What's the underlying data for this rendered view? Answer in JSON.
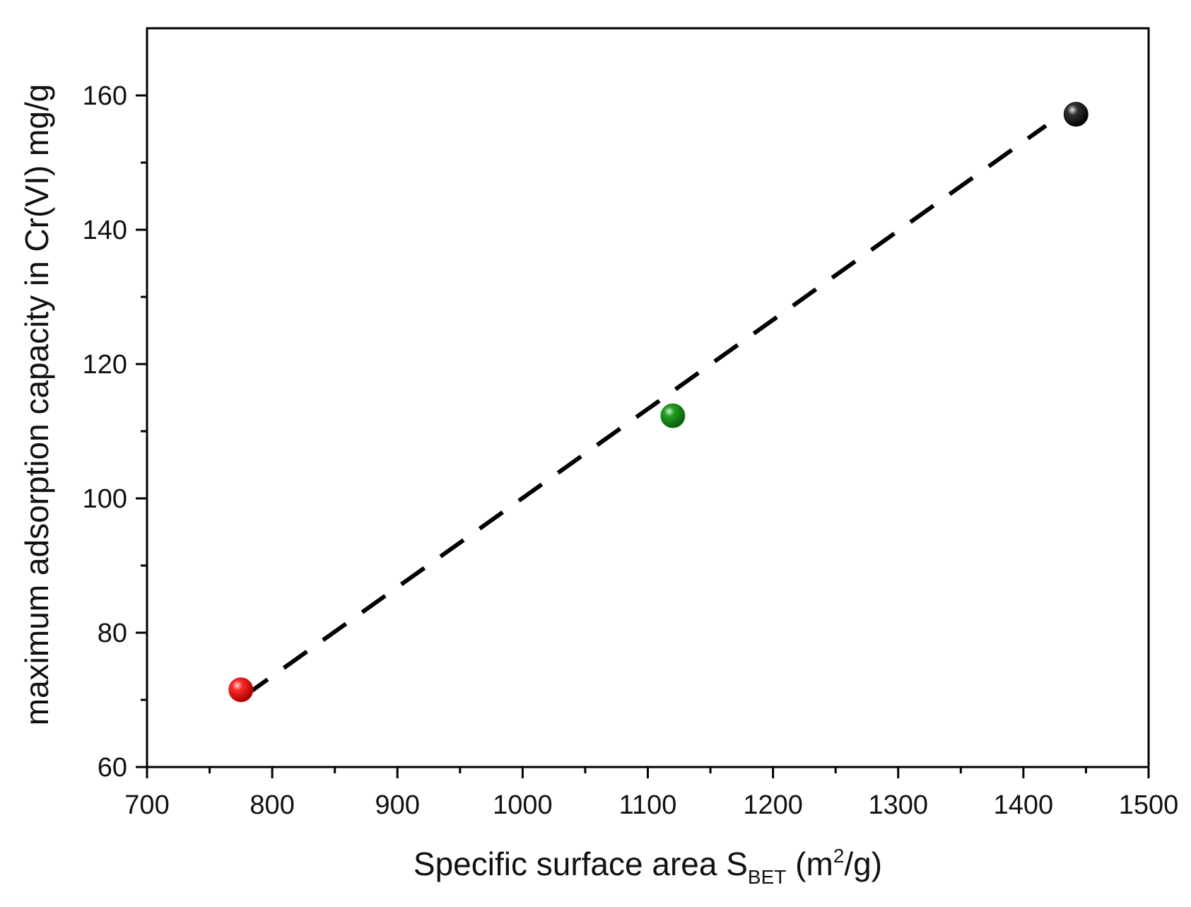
{
  "chart_data": {
    "type": "scatter",
    "title": "",
    "xlabel_parts": {
      "main": "Specific surface area S",
      "subscript": "BET",
      "unit_open": " (m",
      "superscript": "2",
      "unit_close": "/g)"
    },
    "ylabel": "maximum adsorption capacity in Cr(VI) mg/g",
    "xlim": [
      700,
      1500
    ],
    "ylim": [
      60,
      170
    ],
    "x_ticks": [
      700,
      800,
      900,
      1000,
      1100,
      1200,
      1300,
      1400,
      1500
    ],
    "x_tick_labels": [
      "700",
      "800",
      "900",
      "1000",
      "1100",
      "1200",
      "1300",
      "1400",
      "1500"
    ],
    "x_minor_ticks": [
      750,
      850,
      950,
      1050,
      1150,
      1250,
      1350,
      1450
    ],
    "y_ticks": [
      60,
      80,
      100,
      120,
      140,
      160
    ],
    "y_tick_labels": [
      "60",
      "80",
      "100",
      "120",
      "140",
      "160"
    ],
    "y_minor_ticks": [
      70,
      90,
      110,
      130,
      150
    ],
    "grid": false,
    "points": [
      {
        "x": 775,
        "y": 71.5,
        "color": "#e01010"
      },
      {
        "x": 1120,
        "y": 112.3,
        "color": "#1a8a1a"
      },
      {
        "x": 1442,
        "y": 157.2,
        "color": "#111111"
      }
    ],
    "fit_line": {
      "x": [
        778,
        1418
      ],
      "y": [
        70.6,
        155.5
      ],
      "style": "dashed",
      "color": "#000000"
    }
  }
}
